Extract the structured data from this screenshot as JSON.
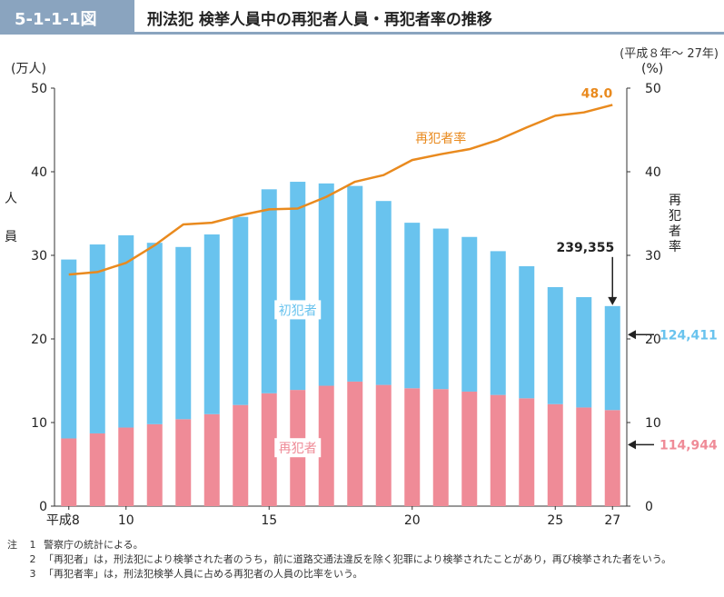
{
  "header": {
    "figure_no": "5-1-1-1図",
    "title": "刑法犯 検挙人員中の再犯者人員・再犯者率の推移",
    "period": "(平成８年～ 27年)"
  },
  "colors": {
    "first_offender": "#69c3ee",
    "repeat_offender": "#ef8b97",
    "rate_line": "#e98a1e",
    "header_bar": "#8aa4bf"
  },
  "chart_data": {
    "type": "bar",
    "stacked": true,
    "x_tick_labels": [
      "平成8",
      "10",
      "15",
      "20",
      "25",
      "27"
    ],
    "categories": [
      8,
      9,
      10,
      11,
      12,
      13,
      14,
      15,
      16,
      17,
      18,
      19,
      20,
      21,
      22,
      23,
      24,
      25,
      26,
      27
    ],
    "left_unit": "(万人)",
    "left_axis_label": "人員",
    "right_unit": "(%)",
    "right_axis_label": "再犯者率",
    "ylim_left": [
      0,
      50
    ],
    "ylim_right": [
      0,
      50
    ],
    "y_ticks": [
      0,
      10,
      20,
      30,
      40,
      50
    ],
    "series": [
      {
        "name": "再犯者",
        "axis": "left",
        "values": [
          8.1,
          8.7,
          9.4,
          9.8,
          10.4,
          11.0,
          12.1,
          13.5,
          13.9,
          14.4,
          14.9,
          14.5,
          14.1,
          14.0,
          13.7,
          13.3,
          12.9,
          12.2,
          11.8,
          11.49
        ]
      },
      {
        "name": "初犯者",
        "axis": "left",
        "values": [
          21.4,
          22.6,
          23.0,
          21.7,
          20.6,
          21.5,
          22.5,
          24.4,
          24.9,
          24.2,
          23.4,
          22.0,
          19.8,
          19.2,
          18.5,
          17.2,
          15.8,
          14.0,
          13.2,
          12.44
        ]
      },
      {
        "name": "再犯者率",
        "axis": "right",
        "type": "line",
        "values": [
          27.7,
          28.0,
          29.1,
          31.2,
          33.7,
          33.9,
          34.8,
          35.5,
          35.6,
          37.0,
          38.8,
          39.6,
          41.4,
          42.1,
          42.7,
          43.8,
          45.3,
          46.7,
          47.1,
          48.0
        ]
      }
    ],
    "annotations": {
      "total_label": "239,355",
      "first_label": "124,411",
      "repeat_label": "114,944",
      "rate_label": "48.0"
    }
  },
  "notes": [
    {
      "tag": "注",
      "num": "1",
      "text": "警察庁の統計による。"
    },
    {
      "tag": "",
      "num": "2",
      "text": "「再犯者」は，刑法犯により検挙された者のうち，前に道路交通法違反を除く犯罪により検挙されたことがあり，再び検挙された者をいう。"
    },
    {
      "tag": "",
      "num": "3",
      "text": "「再犯者率」は，刑法犯検挙人員に占める再犯者の人員の比率をいう。"
    }
  ]
}
